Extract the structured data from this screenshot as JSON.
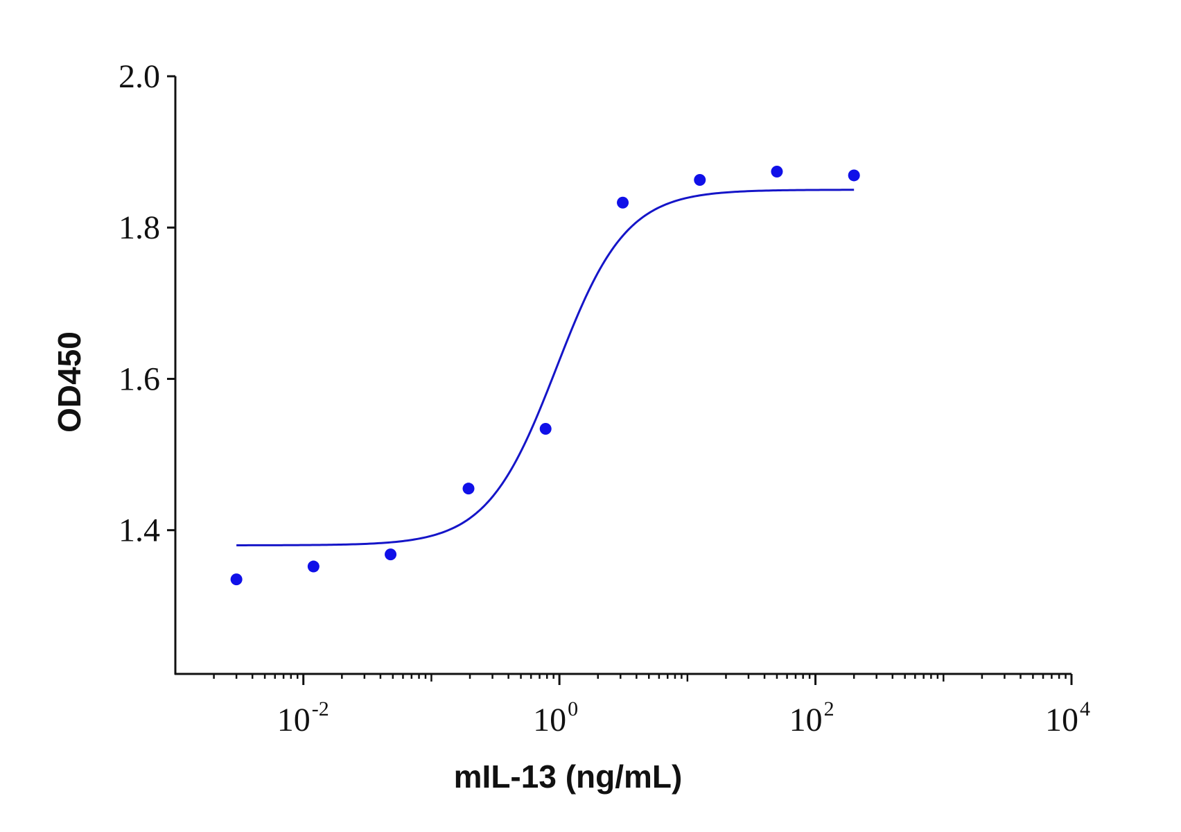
{
  "chart_data": {
    "type": "scatter",
    "title": "",
    "xlabel": "mIL-13 (ng/mL)",
    "ylabel": "OD450",
    "x_scale": "log",
    "xlim_log10": [
      -3,
      4
    ],
    "x_ticks": [
      {
        "base": "10",
        "exp": "-2",
        "value": 0.01
      },
      {
        "base": "10",
        "exp": "0",
        "value": 1
      },
      {
        "base": "10",
        "exp": "2",
        "value": 100
      },
      {
        "base": "10",
        "exp": "4",
        "value": 10000
      }
    ],
    "ylim": [
      1.21,
      2.0
    ],
    "y_ticks": [
      "1.4",
      "1.6",
      "1.8",
      "2.0"
    ],
    "grid": false,
    "series": [
      {
        "name": "data points",
        "kind": "scatter",
        "color": "#1010e8",
        "x": [
          0.003,
          0.012,
          0.048,
          0.195,
          0.78,
          3.125,
          12.5,
          50,
          200
        ],
        "y": [
          1.335,
          1.352,
          1.368,
          1.455,
          1.534,
          1.833,
          1.863,
          1.874,
          1.869
        ]
      },
      {
        "name": "fitted curve",
        "kind": "line",
        "color": "#1515c8",
        "model": "4PL",
        "bottom": 1.38,
        "top": 1.85,
        "ec50": 0.95,
        "hill": 1.6,
        "x_range": [
          0.003,
          200
        ]
      }
    ]
  }
}
